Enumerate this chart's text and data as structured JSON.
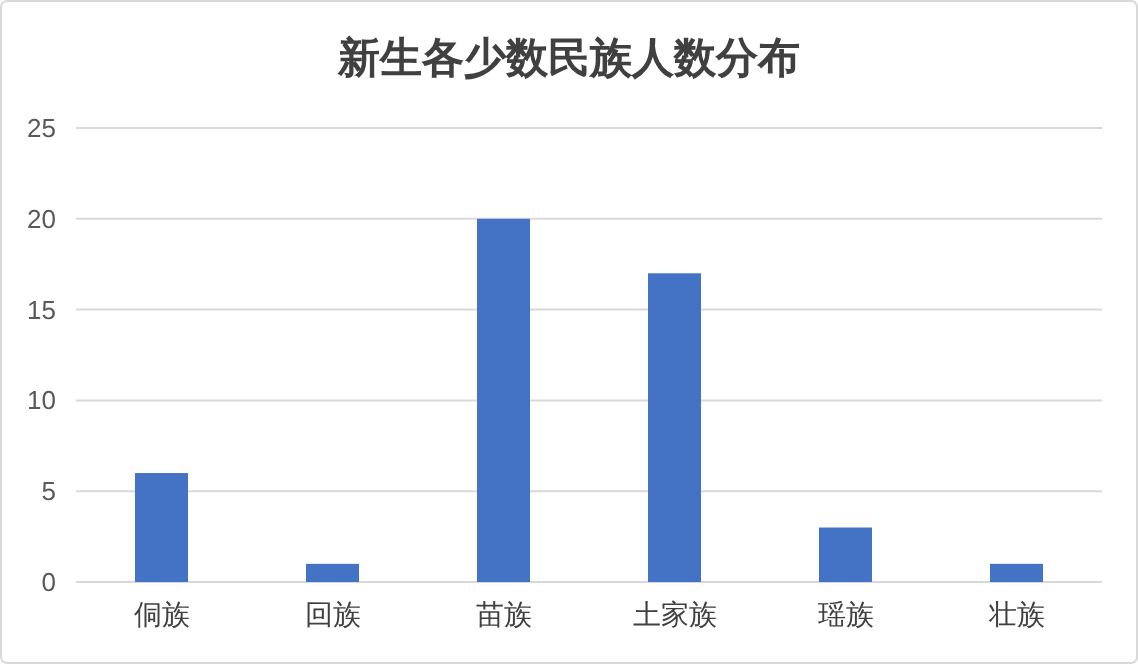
{
  "chart_data": {
    "type": "bar",
    "title": "新生各少数民族人数分布",
    "categories": [
      "侗族",
      "回族",
      "苗族",
      "土家族",
      "瑶族",
      "壮族"
    ],
    "values": [
      6,
      1,
      20,
      17,
      3,
      1
    ],
    "color": "#4472c4",
    "ylim": [
      0,
      25
    ],
    "yticks": [
      0,
      5,
      10,
      15,
      20,
      25
    ],
    "grid": "y"
  }
}
